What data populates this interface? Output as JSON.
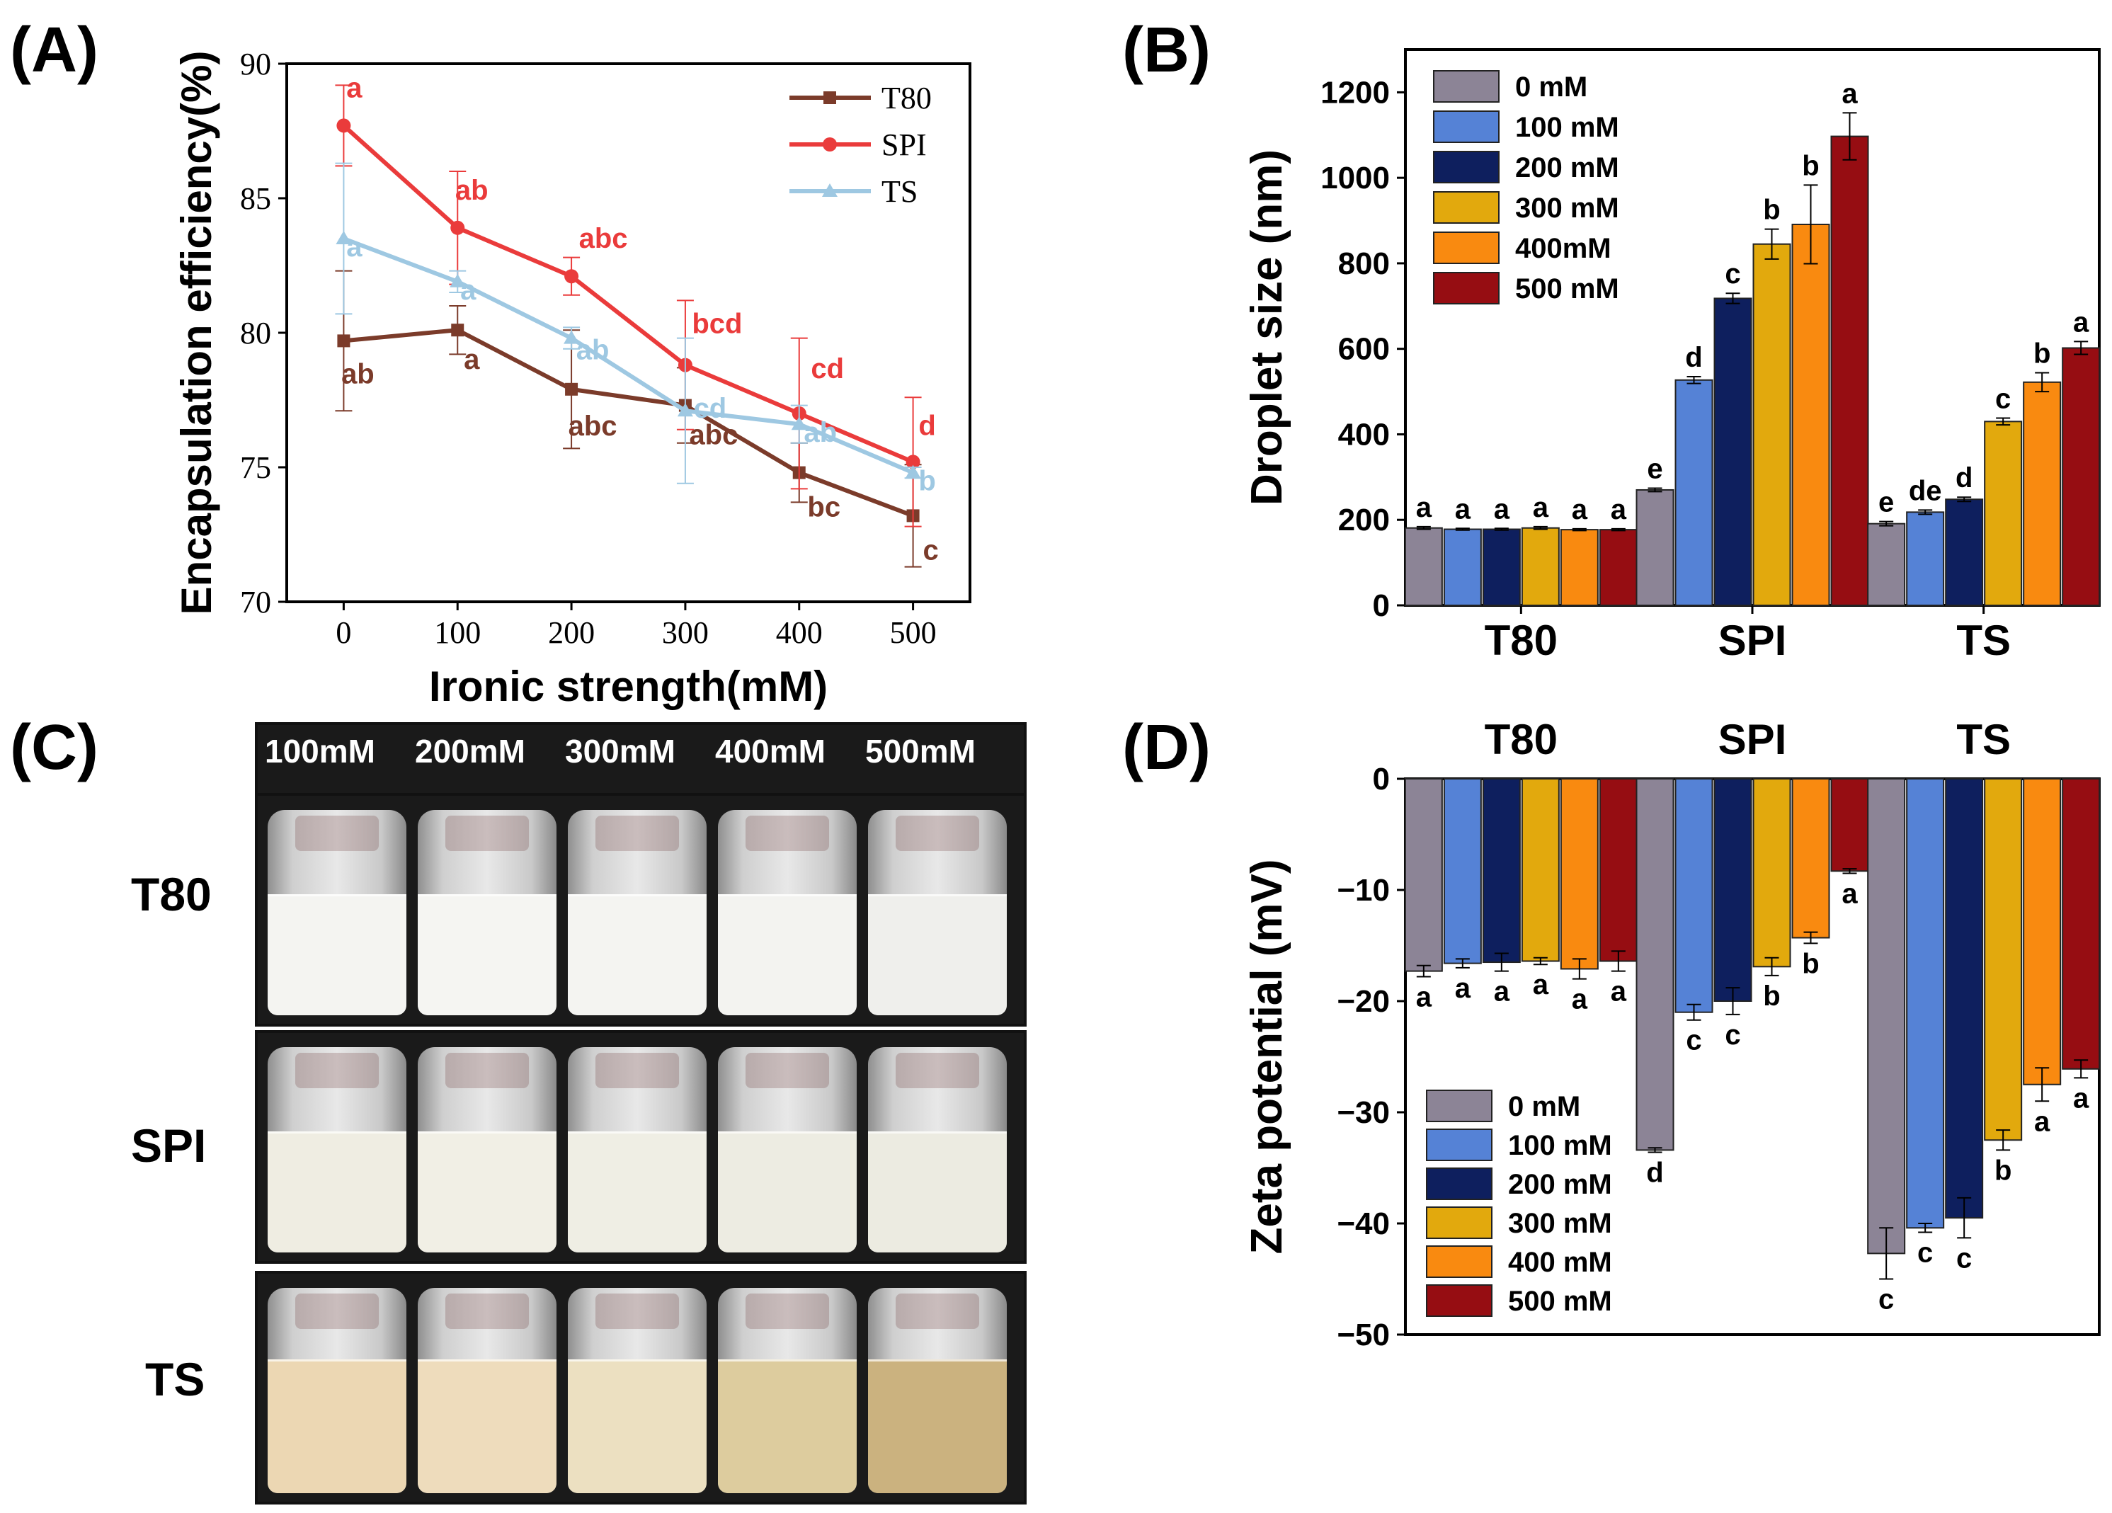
{
  "panels": {
    "A": "(A)",
    "B": "(B)",
    "C": "(C)",
    "D": "(D)"
  },
  "chart_data": [
    {
      "id": "A",
      "type": "line",
      "xlabel": "Ironic strength(mM)",
      "ylabel": "Encapsulation efficiency(%)",
      "x": [
        0,
        100,
        200,
        300,
        400,
        500
      ],
      "xlim": [
        -50,
        550
      ],
      "ylim": [
        70,
        90
      ],
      "yticks": [
        70,
        75,
        80,
        85,
        90
      ],
      "xticks": [
        0,
        100,
        200,
        300,
        400,
        500
      ],
      "legend": "top-right",
      "series": [
        {
          "name": "T80",
          "color": "#7b3b2a",
          "marker": "square",
          "values": [
            79.7,
            80.1,
            77.9,
            77.3,
            74.8,
            73.2
          ],
          "errors": [
            2.6,
            0.9,
            2.2,
            1.4,
            1.1,
            1.9
          ],
          "letters": [
            "ab",
            "a",
            "abc",
            "abc",
            "bc",
            "c"
          ]
        },
        {
          "name": "SPI",
          "color": "#ea3b3b",
          "marker": "circle",
          "values": [
            87.7,
            83.9,
            82.1,
            78.8,
            77.0,
            75.2
          ],
          "errors": [
            1.5,
            2.1,
            0.7,
            2.4,
            2.8,
            2.4
          ],
          "letters": [
            "a",
            "ab",
            "abc",
            "bcd",
            "cd",
            "d"
          ]
        },
        {
          "name": "TS",
          "color": "#9ec8e2",
          "marker": "triangle",
          "values": [
            83.5,
            81.9,
            79.8,
            77.1,
            76.6,
            74.8
          ],
          "errors": [
            2.8,
            0.4,
            0.4,
            2.7,
            0.7,
            0.2
          ],
          "letters": [
            "a",
            "a",
            "ab",
            "cd",
            "ab",
            "b"
          ]
        }
      ]
    },
    {
      "id": "B",
      "type": "bar",
      "ylabel": "Droplet size (nm)",
      "categories": [
        "T80",
        "SPI",
        "TS"
      ],
      "ylim": [
        0,
        1300
      ],
      "yticks": [
        0,
        200,
        400,
        600,
        800,
        1000,
        1200
      ],
      "legend": "top-left",
      "series": [
        {
          "name": "0 mM",
          "color": "#8c8496",
          "values": [
            181,
            270,
            191
          ],
          "errors": [
            3,
            4,
            5
          ],
          "letters": [
            "a",
            "e",
            "e"
          ]
        },
        {
          "name": "100 mM",
          "color": "#5582d6",
          "values": [
            178,
            527,
            218
          ],
          "errors": [
            2,
            8,
            5
          ],
          "letters": [
            "a",
            "d",
            "de"
          ]
        },
        {
          "name": "200 mM",
          "color": "#0e1f5e",
          "values": [
            178,
            718,
            248
          ],
          "errors": [
            2,
            12,
            5
          ],
          "letters": [
            "a",
            "c",
            "d"
          ]
        },
        {
          "name": "300 mM",
          "color": "#e2a90d",
          "values": [
            181,
            845,
            430
          ],
          "errors": [
            3,
            35,
            8
          ],
          "letters": [
            "a",
            "b",
            "c"
          ]
        },
        {
          "name": "400mM",
          "color": "#f98a10",
          "values": [
            177,
            891,
            522
          ],
          "errors": [
            2,
            92,
            22
          ],
          "letters": [
            "a",
            "b",
            "b"
          ]
        },
        {
          "name": "500 mM",
          "color": "#960d12",
          "values": [
            177,
            1097,
            602
          ],
          "errors": [
            2,
            55,
            15
          ],
          "letters": [
            "a",
            "a",
            "a"
          ]
        }
      ]
    },
    {
      "id": "D",
      "type": "bar",
      "ylabel": "Zeta potential (mV)",
      "categories": [
        "T80",
        "SPI",
        "TS"
      ],
      "ylim": [
        -50,
        0
      ],
      "yticks": [
        0,
        -10,
        -20,
        -30,
        -40,
        -50
      ],
      "legend": "bottom-left",
      "series": [
        {
          "name": "0 mM",
          "color": "#8c8496",
          "values": [
            -17.3,
            -33.4,
            -42.7
          ],
          "errors": [
            0.5,
            0.2,
            2.3
          ],
          "letters": [
            "a",
            "d",
            "c"
          ]
        },
        {
          "name": "100 mM",
          "color": "#5582d6",
          "values": [
            -16.6,
            -21.0,
            -40.4
          ],
          "errors": [
            0.4,
            0.7,
            0.4
          ],
          "letters": [
            "a",
            "c",
            "c"
          ]
        },
        {
          "name": "200 mM",
          "color": "#0e1f5e",
          "values": [
            -16.5,
            -20.0,
            -39.5
          ],
          "errors": [
            0.8,
            1.2,
            1.8
          ],
          "letters": [
            "a",
            "c",
            "c"
          ]
        },
        {
          "name": "300 mM",
          "color": "#e2a90d",
          "values": [
            -16.4,
            -16.9,
            -32.5
          ],
          "errors": [
            0.3,
            0.8,
            0.9
          ],
          "letters": [
            "a",
            "b",
            "b"
          ]
        },
        {
          "name": "400 mM",
          "color": "#f98a10",
          "values": [
            -17.1,
            -14.3,
            -27.5
          ],
          "errors": [
            0.9,
            0.5,
            1.5
          ],
          "letters": [
            "a",
            "b",
            "a"
          ]
        },
        {
          "name": "500 mM",
          "color": "#960d12",
          "values": [
            -16.4,
            -8.3,
            -26.1
          ],
          "errors": [
            0.9,
            0.2,
            0.8
          ],
          "letters": [
            "a",
            "a",
            "a"
          ]
        }
      ]
    }
  ],
  "photo_panel": {
    "concentrations": [
      "100mM",
      "200mM",
      "300mM",
      "400mM",
      "500mM"
    ],
    "rows": [
      {
        "label": "T80",
        "liquid_colors": [
          "#f4f4f1",
          "#f5f5f2",
          "#f4f4f1",
          "#f3f3f0",
          "#efefec"
        ]
      },
      {
        "label": "SPI",
        "liquid_colors": [
          "#efede2",
          "#f1efe5",
          "#efeee4",
          "#edece2",
          "#ecebe1"
        ]
      },
      {
        "label": "TS",
        "liquid_colors": [
          "#ecd7b3",
          "#eedcbc",
          "#ece0c1",
          "#ddcc9e",
          "#cbb27f"
        ]
      }
    ]
  }
}
